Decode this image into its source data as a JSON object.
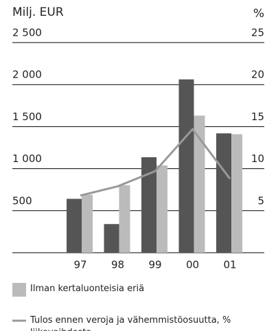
{
  "chart_data": {
    "type": "bar",
    "y_label": "Milj. EUR",
    "y2_label": "%",
    "categories": [
      "97",
      "98",
      "99",
      "00",
      "01"
    ],
    "series": [
      {
        "color": "#555555",
        "values": [
          641,
          341,
          1136,
          2062,
          1420
        ]
      },
      {
        "name": "Ilman kertaluonteisia eriä",
        "color": "#bbbbbb",
        "values": [
          690,
          804,
          1039,
          1631,
          1410
        ]
      },
      {
        "name": "Tulos ennen veroja ja vähemmistöosuutta, % liikevaihdosta",
        "type": "line",
        "axis": "y2",
        "color": "#999999",
        "values": [
          6.8,
          7.9,
          9.7,
          14.7,
          8.8
        ]
      }
    ],
    "ylim": [
      0,
      2500
    ],
    "yticks": [
      {
        "value": 500,
        "label": "500"
      },
      {
        "value": 1000,
        "label": "1 000"
      },
      {
        "value": 1500,
        "label": "1 500"
      },
      {
        "value": 2000,
        "label": "2 000"
      },
      {
        "value": 2500,
        "label": "2 500"
      }
    ],
    "y2lim": [
      0,
      25
    ],
    "y2ticks": [
      5,
      10,
      15,
      20,
      25
    ],
    "grid": true
  }
}
